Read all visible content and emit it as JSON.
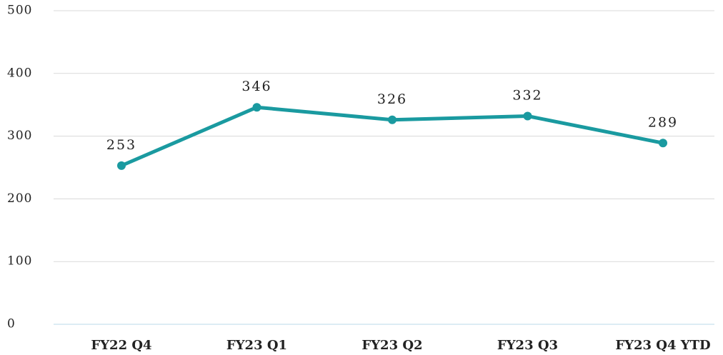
{
  "chart_data": {
    "type": "line",
    "categories": [
      "FY22 Q4",
      "FY23 Q1",
      "FY23 Q2",
      "FY23 Q3",
      "FY23 Q4 YTD"
    ],
    "values": [
      253,
      346,
      326,
      332,
      289
    ],
    "color": "#1a9aa0",
    "ylim": [
      0,
      500
    ],
    "yticks": [
      0,
      100,
      200,
      300,
      400,
      500
    ],
    "grid": true
  }
}
